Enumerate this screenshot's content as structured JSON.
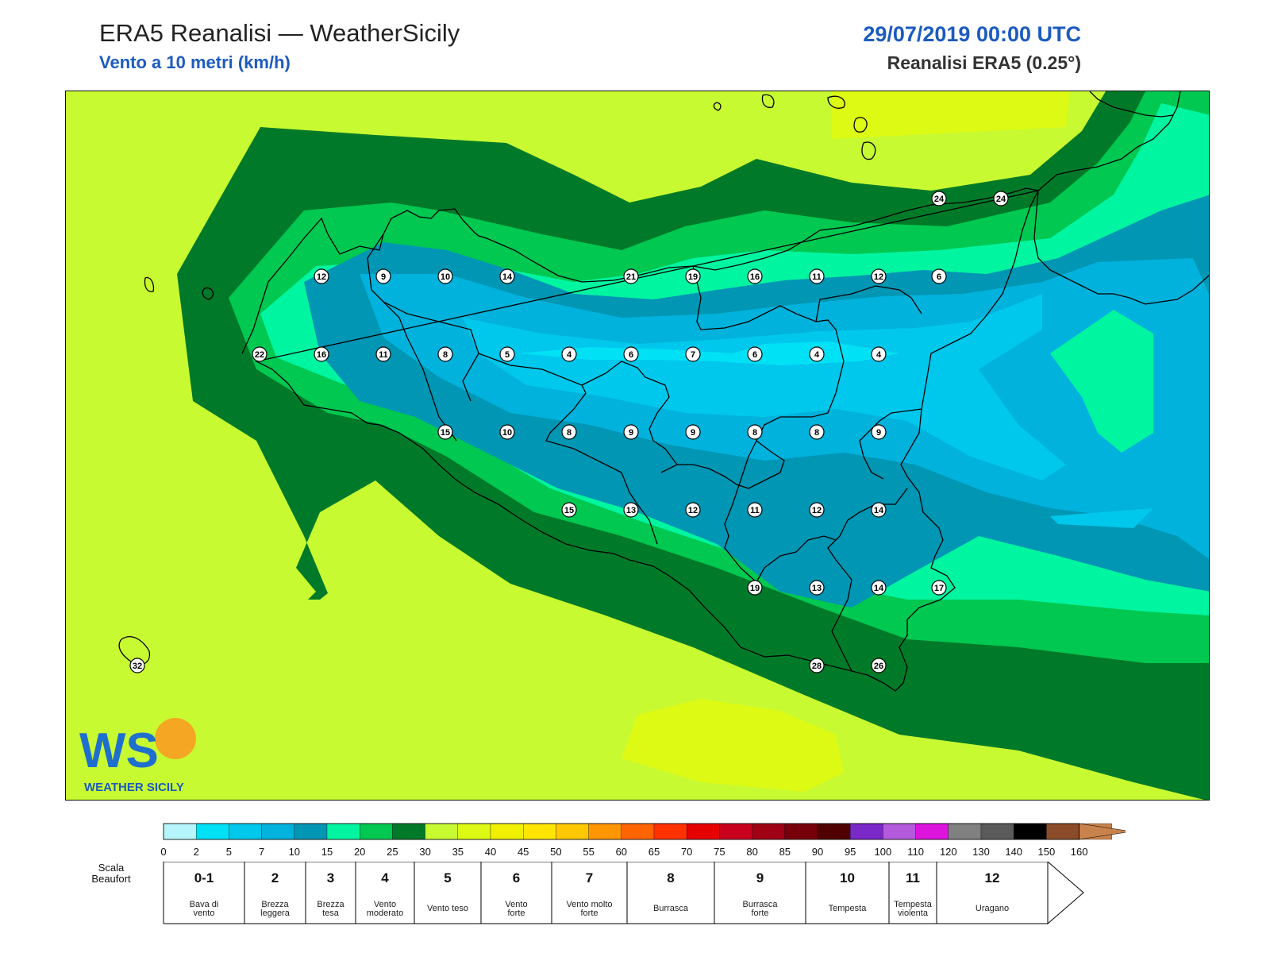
{
  "header": {
    "title": "ERA5 Reanalisi — WeatherSicily",
    "subtitle": "Vento a 10 metri (km/h)",
    "datetime": "29/07/2019 00:00 UTC",
    "model": "Reanalisi ERA5 (0.25°)"
  },
  "logo": {
    "text": "WEATHER SICILY",
    "letters": "WS"
  },
  "colorbar": {
    "ticks": [
      "0",
      "2",
      "5",
      "7",
      "10",
      "15",
      "20",
      "25",
      "30",
      "35",
      "40",
      "45",
      "50",
      "55",
      "60",
      "65",
      "70",
      "75",
      "80",
      "85",
      "90",
      "95",
      "100",
      "110",
      "120",
      "130",
      "140",
      "150",
      "160"
    ],
    "colors": [
      "#b6f5fb",
      "#00e1f5",
      "#00c8ec",
      "#00b2dc",
      "#0096b4",
      "#00f5a0",
      "#00c850",
      "#007a28",
      "#c8fa32",
      "#dcfa14",
      "#f0f000",
      "#ffe600",
      "#ffc800",
      "#ff9600",
      "#ff6400",
      "#ff3200",
      "#e60000",
      "#c8001e",
      "#a00014",
      "#78000a",
      "#500000",
      "#7a28c8",
      "#b45adc",
      "#dc14dc",
      "#808080",
      "#5a5a5a",
      "#000000",
      "#8c4b28",
      "#c8824b"
    ]
  },
  "beaufort": {
    "label_line1": "Scala",
    "label_line2": "Beaufort",
    "classes": [
      {
        "num": "0-1",
        "l1": "Bava di",
        "l2": "vento"
      },
      {
        "num": "2",
        "l1": "Brezza",
        "l2": "leggera"
      },
      {
        "num": "3",
        "l1": "Brezza",
        "l2": "tesa"
      },
      {
        "num": "4",
        "l1": "Vento",
        "l2": "moderato"
      },
      {
        "num": "5",
        "l1": "Vento teso",
        "l2": ""
      },
      {
        "num": "6",
        "l1": "Vento",
        "l2": "forte"
      },
      {
        "num": "7",
        "l1": "Vento molto",
        "l2": "forte"
      },
      {
        "num": "8",
        "l1": "Burrasca",
        "l2": ""
      },
      {
        "num": "9",
        "l1": "Burrasca",
        "l2": "forte"
      },
      {
        "num": "10",
        "l1": "Tempesta",
        "l2": ""
      },
      {
        "num": "11",
        "l1": "Tempesta",
        "l2": "violenta"
      },
      {
        "num": "12",
        "l1": "Uragano",
        "l2": ""
      }
    ]
  },
  "map_values": [
    {
      "v": "24"
    },
    {
      "v": "24"
    },
    {
      "v": "12"
    },
    {
      "v": "9"
    },
    {
      "v": "10"
    },
    {
      "v": "14"
    },
    {
      "v": "21"
    },
    {
      "v": "19"
    },
    {
      "v": "16"
    },
    {
      "v": "11"
    },
    {
      "v": "12"
    },
    {
      "v": "6"
    },
    {
      "v": "22"
    },
    {
      "v": "16"
    },
    {
      "v": "11"
    },
    {
      "v": "8"
    },
    {
      "v": "5"
    },
    {
      "v": "4"
    },
    {
      "v": "6"
    },
    {
      "v": "7"
    },
    {
      "v": "6"
    },
    {
      "v": "4"
    },
    {
      "v": "4"
    },
    {
      "v": "15"
    },
    {
      "v": "10"
    },
    {
      "v": "8"
    },
    {
      "v": "9"
    },
    {
      "v": "9"
    },
    {
      "v": "8"
    },
    {
      "v": "8"
    },
    {
      "v": "9"
    },
    {
      "v": "15"
    },
    {
      "v": "13"
    },
    {
      "v": "12"
    },
    {
      "v": "11"
    },
    {
      "v": "12"
    },
    {
      "v": "14"
    },
    {
      "v": "19"
    },
    {
      "v": "13"
    },
    {
      "v": "14"
    },
    {
      "v": "17"
    },
    {
      "v": "28"
    },
    {
      "v": "26"
    },
    {
      "v": "32"
    }
  ]
}
